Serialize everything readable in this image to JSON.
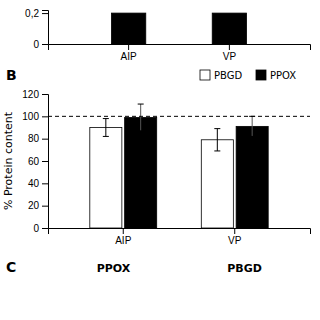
{
  "chart_data": [
    {
      "type": "bar",
      "categories": [
        "AIP",
        "VP"
      ],
      "values": [
        0.2,
        0.2
      ],
      "color": "black",
      "ylim": [
        0,
        0.22
      ],
      "yticks": [
        0,
        {
          "value": 0.2,
          "label": "0,2"
        }
      ],
      "grid": false
    },
    {
      "type": "bar",
      "title": "B",
      "ylabel": "% Protein content",
      "categories": [
        "AIP",
        "VP"
      ],
      "series": [
        {
          "name": "PBGD",
          "color": "white",
          "values": [
            90,
            79
          ],
          "errors": [
            8,
            10
          ]
        },
        {
          "name": "PPOX",
          "color": "black",
          "values": [
            99,
            91
          ],
          "errors": [
            12,
            9
          ]
        }
      ],
      "ylim": [
        0,
        120
      ],
      "yticks": [
        0,
        20,
        40,
        60,
        80,
        100,
        120
      ],
      "reference_line": 100,
      "legend": "top",
      "grid": false
    },
    {
      "type": "text",
      "title": "C",
      "annotations": [
        "PPOX",
        "PBGD"
      ]
    }
  ]
}
